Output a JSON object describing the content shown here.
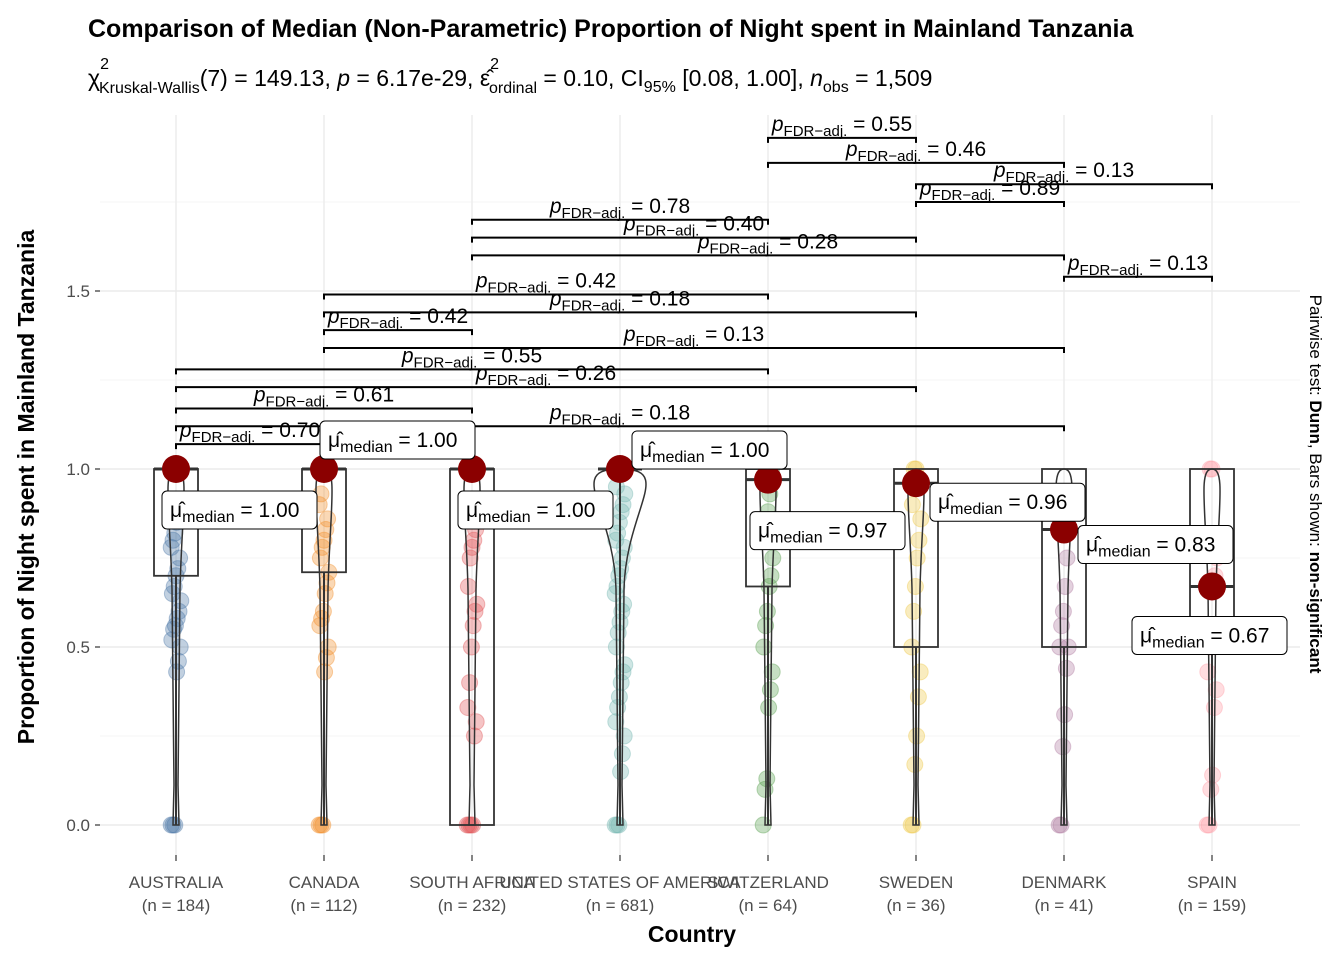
{
  "chart_data": {
    "type": "box-violin",
    "title": "Comparison of Median (Non-Parametric) Proportion of Night spent in Mainland Tanzania",
    "subtitle": {
      "test_symbol": "χ",
      "test_superscript": "2",
      "test_name": "Kruskal-Wallis",
      "df": "(7)",
      "statistic": "149.13",
      "p_label": "p",
      "p_value": "6.17e-29",
      "effect_symbol": "ε̂",
      "effect_superscript": "2",
      "effect_subscript": "ordinal",
      "effect_value": "0.10",
      "ci_label": "CI",
      "ci_subscript": "95%",
      "ci": "[0.08, 1.00]",
      "n_label": "n",
      "n_subscript": "obs",
      "n_obs": "1,509"
    },
    "xlabel": "Country",
    "ylabel": "Proportion of Night spent in Mainland Tanzania",
    "caption_parts": [
      "Pairwise test: ",
      "Dunn",
      ", Bars shown: ",
      "non-significant"
    ],
    "ylim": [
      -0.05,
      1.9
    ],
    "yticks": [
      0.0,
      0.5,
      1.0,
      1.5
    ],
    "ytick_labels": [
      "0.0",
      "0.5",
      "1.0",
      "1.5"
    ],
    "grid": true,
    "categories": [
      "AUSTRALIA",
      "CANADA",
      "SOUTH AFRICA",
      "UNITED STATES OF AMERICA",
      "SWITZERLAND",
      "SWEDEN",
      "DENMARK",
      "SPAIN"
    ],
    "n": [
      "(n = 184)",
      "(n = 112)",
      "(n = 232)",
      "(n = 681)",
      "(n = 64)",
      "(n = 36)",
      "(n = 41)",
      "(n = 159)"
    ],
    "colors": [
      "#4E79A7",
      "#F28E2B",
      "#E15759",
      "#76B7B2",
      "#59A14F",
      "#EDC948",
      "#B07AA1",
      "#FF9DA7"
    ],
    "median_point_color": "#8B0000",
    "groups": [
      {
        "q1": 0.7,
        "median": 1.0,
        "q3": 1.0,
        "median_label": "1.00",
        "points": [
          0,
          0,
          0,
          0.43,
          0.46,
          0.5,
          0.52,
          0.55,
          0.56,
          0.58,
          0.6,
          0.63,
          0.65,
          0.67,
          0.7,
          0.72,
          0.75,
          0.78,
          0.8,
          0.82,
          0.85,
          0.88,
          0.9,
          1.0,
          1.0
        ]
      },
      {
        "q1": 0.71,
        "median": 1.0,
        "q3": 1.0,
        "median_label": "1.00",
        "points": [
          0,
          0,
          0,
          0.43,
          0.47,
          0.5,
          0.56,
          0.58,
          0.6,
          0.65,
          0.68,
          0.71,
          0.75,
          0.78,
          0.8,
          0.83,
          0.86,
          0.9,
          0.93,
          1.0,
          1.0
        ]
      },
      {
        "q1": 0.0,
        "median": 1.0,
        "q3": 1.0,
        "median_label": "1.00",
        "points": [
          0,
          0,
          0,
          0,
          0.25,
          0.29,
          0.33,
          0.4,
          0.5,
          0.56,
          0.6,
          0.62,
          0.67,
          0.75,
          0.78,
          0.8,
          0.83,
          1.0,
          1.0
        ]
      },
      {
        "q1": 1.0,
        "median": 1.0,
        "q3": 1.0,
        "median_label": "1.00",
        "points": [
          0,
          0,
          0,
          0.15,
          0.2,
          0.25,
          0.29,
          0.33,
          0.36,
          0.4,
          0.43,
          0.45,
          0.5,
          0.54,
          0.57,
          0.6,
          0.62,
          0.65,
          0.67,
          0.7,
          0.72,
          0.75,
          0.78,
          0.8,
          0.82,
          0.85,
          0.88,
          0.9,
          0.93,
          0.95,
          1.0,
          1.0
        ]
      },
      {
        "q1": 0.67,
        "median": 0.97,
        "q3": 1.0,
        "median_label": "0.97",
        "points": [
          0,
          0.1,
          0.13,
          0.33,
          0.38,
          0.43,
          0.5,
          0.56,
          0.6,
          0.67,
          0.7,
          0.75,
          0.8,
          0.83,
          0.88,
          0.93,
          1.0
        ]
      },
      {
        "q1": 0.5,
        "median": 0.96,
        "q3": 1.0,
        "median_label": "0.96",
        "points": [
          0,
          0,
          0.17,
          0.25,
          0.36,
          0.43,
          0.5,
          0.6,
          0.67,
          0.75,
          0.8,
          0.86,
          0.9,
          1.0,
          1.0
        ]
      },
      {
        "q1": 0.5,
        "median": 0.83,
        "q3": 1.0,
        "median_label": "0.83",
        "points": [
          0,
          0,
          0.22,
          0.31,
          0.44,
          0.5,
          0.5,
          0.56,
          0.6,
          0.67,
          0.75,
          0.83,
          0.9
        ]
      },
      {
        "q1": 0.5,
        "median": 0.67,
        "q3": 1.0,
        "median_label": "0.67",
        "points": [
          0,
          0,
          0.1,
          0.14,
          0.33,
          0.38,
          0.43,
          0.5,
          0.5,
          0.67,
          0.7,
          0.75,
          0.8,
          1.0,
          1.0
        ]
      }
    ],
    "pairwise": [
      {
        "from": 0,
        "to": 1,
        "y": 1.07,
        "p": "0.70"
      },
      {
        "from": 0,
        "to": 2,
        "y": 1.17,
        "p": "0.61"
      },
      {
        "from": 0,
        "to": 5,
        "y": 1.23,
        "p": "0.26"
      },
      {
        "from": 0,
        "to": 4,
        "y": 1.28,
        "p": "0.55"
      },
      {
        "from": 0,
        "to": 6,
        "y": 1.12,
        "p": "0.18"
      },
      {
        "from": 1,
        "to": 2,
        "y": 1.39,
        "p": "0.42"
      },
      {
        "from": 1,
        "to": 6,
        "y": 1.34,
        "p": "0.13"
      },
      {
        "from": 1,
        "to": 5,
        "y": 1.44,
        "p": "0.18"
      },
      {
        "from": 1,
        "to": 4,
        "y": 1.49,
        "p": "0.42"
      },
      {
        "from": 2,
        "to": 6,
        "y": 1.6,
        "p": "0.28"
      },
      {
        "from": 2,
        "to": 5,
        "y": 1.65,
        "p": "0.40"
      },
      {
        "from": 2,
        "to": 4,
        "y": 1.7,
        "p": "0.78"
      },
      {
        "from": 4,
        "to": 5,
        "y": 1.93,
        "p": "0.55"
      },
      {
        "from": 4,
        "to": 6,
        "y": 1.86,
        "p": "0.46"
      },
      {
        "from": 5,
        "to": 6,
        "y": 1.75,
        "p": "0.89"
      },
      {
        "from": 5,
        "to": 7,
        "y": 1.8,
        "p": "0.13"
      },
      {
        "from": 6,
        "to": 7,
        "y": 1.54,
        "p": "0.13"
      }
    ],
    "pair_label_prefix": "p",
    "pair_label_subscript": "FDR−adj.",
    "median_label_symbol": "μ̂",
    "median_label_subscript": "median"
  }
}
